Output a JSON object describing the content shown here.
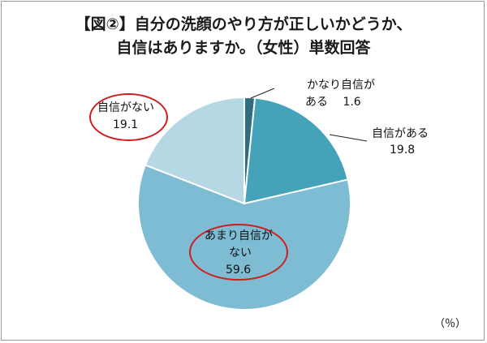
{
  "title_line1": "【図②】自分の洗顔のやり方が正しいかどうか、",
  "title_line2": "自信はありますか。（女性）単数回答",
  "unit": "（％）",
  "chart_data": {
    "type": "pie",
    "title": "【図②】自分の洗顔のやり方が正しいかどうか、自信はありますか。（女性）単数回答",
    "unit": "%",
    "slices": [
      {
        "label": "かなり自信がある",
        "value": 1.6,
        "color": "#2e6e80"
      },
      {
        "label": "自信がある",
        "value": 19.8,
        "color": "#44a3b9"
      },
      {
        "label": "あまり自信がない",
        "value": 59.6,
        "color": "#7dbcd3"
      },
      {
        "label": "自信がない",
        "value": 19.1,
        "color": "#b6d8e4"
      }
    ],
    "labels": {
      "very_confident_line1": "かなり自信が",
      "very_confident_line2": "ある",
      "very_confident_value": "1.6",
      "confident_line1": "自信がある",
      "confident_value": "19.8",
      "not_very_line1": "あまり自信が",
      "not_very_line2": "ない",
      "not_very_value": "59.6",
      "not_confident_line1": "自信がない",
      "not_confident_value": "19.1"
    }
  }
}
